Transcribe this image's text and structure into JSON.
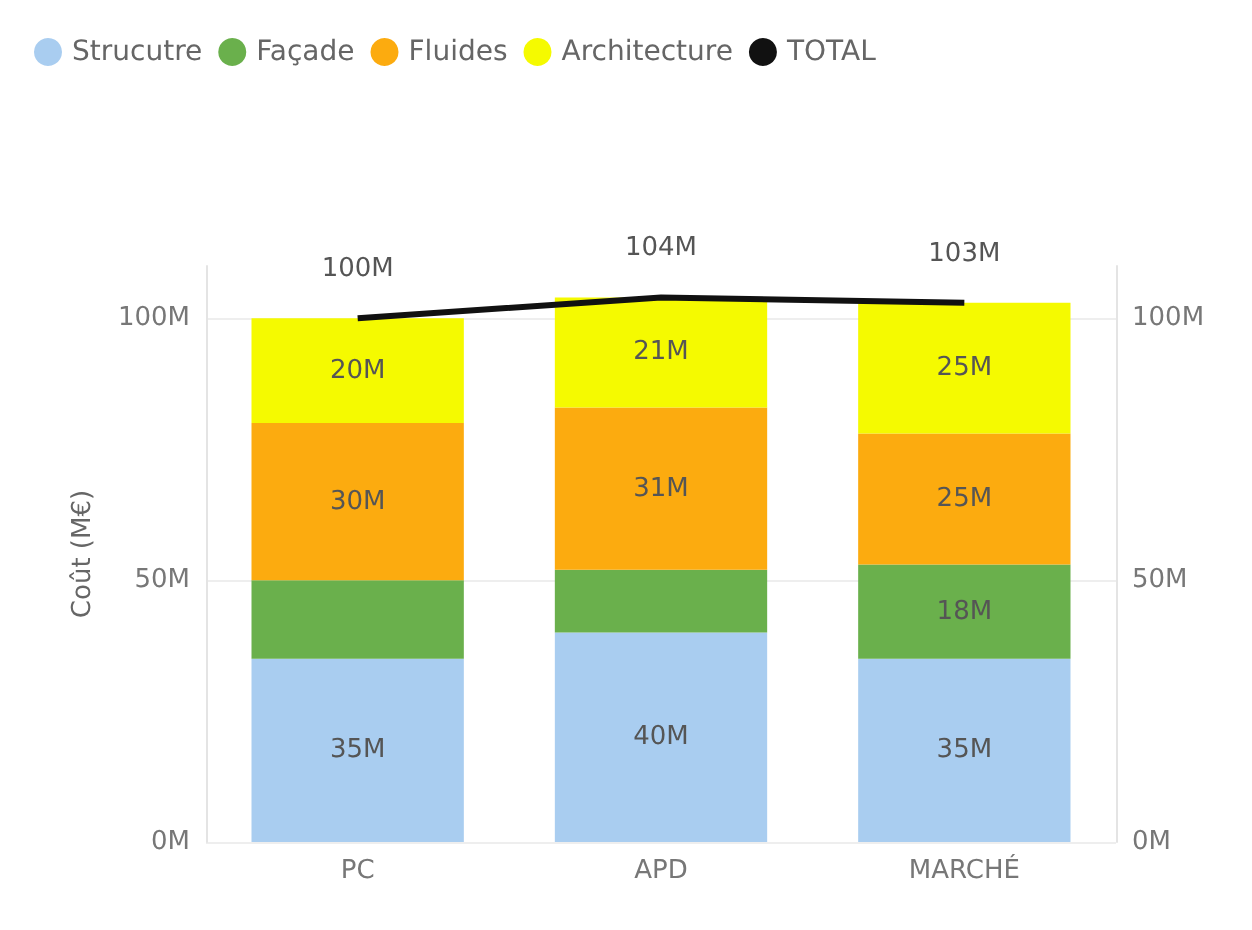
{
  "chart_data": {
    "type": "bar",
    "stacked": true,
    "ylabel": "Coût (M€)",
    "categories": [
      "PC",
      "APD",
      "MARCHÉ"
    ],
    "series": [
      {
        "name": "Strucutre",
        "color": "#a9cdf0",
        "values": [
          35,
          40,
          35
        ],
        "value_labels": [
          "35M",
          "40M",
          "35M"
        ]
      },
      {
        "name": "Façade",
        "color": "#6ab04c",
        "values": [
          15,
          12,
          18
        ],
        "value_labels": [
          null,
          null,
          "18M"
        ]
      },
      {
        "name": "Fluides",
        "color": "#fcab0f",
        "values": [
          30,
          31,
          25
        ],
        "value_labels": [
          "30M",
          "31M",
          "25M"
        ]
      },
      {
        "name": "Architecture",
        "color": "#f5fa00",
        "values": [
          20,
          21,
          25
        ],
        "value_labels": [
          "20M",
          "21M",
          "25M"
        ]
      },
      {
        "name": "TOTAL",
        "type": "line",
        "color": "#111111",
        "values": [
          100,
          104,
          103
        ],
        "value_labels": [
          "100M",
          "104M",
          "103M"
        ]
      }
    ],
    "ylim": [
      0,
      110
    ],
    "yticks": [
      {
        "value": 0,
        "label": "0M"
      },
      {
        "value": 50,
        "label": "50M"
      },
      {
        "value": 100,
        "label": "100M"
      }
    ],
    "y2lim": [
      0,
      110
    ],
    "y2ticks": [
      {
        "value": 0,
        "label": "0M"
      },
      {
        "value": 50,
        "label": "50M"
      },
      {
        "value": 100,
        "label": "100M"
      }
    ],
    "grid": "y",
    "legend": "top left",
    "marker": "none"
  }
}
